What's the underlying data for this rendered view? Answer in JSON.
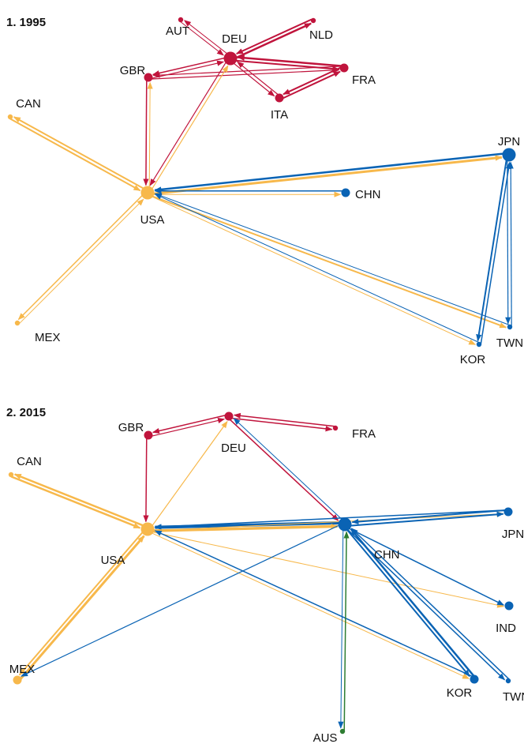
{
  "chart_data": [
    {
      "type": "network",
      "title": "1. 1995",
      "colors": {
        "europe": "#c0143c",
        "america": "#f7b84b",
        "asia": "#0a63b4"
      },
      "nodes": [
        {
          "id": "AUT",
          "group": "europe",
          "size": "small"
        },
        {
          "id": "DEU",
          "group": "europe",
          "size": "large"
        },
        {
          "id": "NLD",
          "group": "europe",
          "size": "small"
        },
        {
          "id": "GBR",
          "group": "europe",
          "size": "medium"
        },
        {
          "id": "FRA",
          "group": "europe",
          "size": "medium"
        },
        {
          "id": "ITA",
          "group": "europe",
          "size": "medium"
        },
        {
          "id": "CAN",
          "group": "america",
          "size": "small"
        },
        {
          "id": "USA",
          "group": "america",
          "size": "large"
        },
        {
          "id": "MEX",
          "group": "america",
          "size": "small"
        },
        {
          "id": "JPN",
          "group": "asia",
          "size": "large"
        },
        {
          "id": "CHN",
          "group": "asia",
          "size": "medium"
        },
        {
          "id": "KOR",
          "group": "asia",
          "size": "small"
        },
        {
          "id": "TWN",
          "group": "asia",
          "size": "small"
        }
      ],
      "edges": [
        {
          "from": "DEU",
          "to": "AUT",
          "w": 1.0
        },
        {
          "from": "AUT",
          "to": "DEU",
          "w": 1.0
        },
        {
          "from": "DEU",
          "to": "NLD",
          "w": 2.5
        },
        {
          "from": "NLD",
          "to": "DEU",
          "w": 2.0
        },
        {
          "from": "DEU",
          "to": "FRA",
          "w": 2.0
        },
        {
          "from": "FRA",
          "to": "DEU",
          "w": 2.5
        },
        {
          "from": "DEU",
          "to": "GBR",
          "w": 1.5
        },
        {
          "from": "GBR",
          "to": "DEU",
          "w": 1.2
        },
        {
          "from": "DEU",
          "to": "ITA",
          "w": 1.2
        },
        {
          "from": "ITA",
          "to": "DEU",
          "w": 1.2
        },
        {
          "from": "ITA",
          "to": "FRA",
          "w": 2.0
        },
        {
          "from": "FRA",
          "to": "ITA",
          "w": 2.0
        },
        {
          "from": "FRA",
          "to": "GBR",
          "w": 1.2
        },
        {
          "from": "GBR",
          "to": "FRA",
          "w": 1.2
        },
        {
          "from": "GBR",
          "to": "USA",
          "w": 1.5
        },
        {
          "from": "DEU",
          "to": "USA",
          "w": 1.2
        },
        {
          "from": "USA",
          "to": "GBR",
          "w": 1.0
        },
        {
          "from": "USA",
          "to": "DEU",
          "w": 1.2
        },
        {
          "from": "USA",
          "to": "CAN",
          "w": 2.0
        },
        {
          "from": "CAN",
          "to": "USA",
          "w": 2.0
        },
        {
          "from": "USA",
          "to": "MEX",
          "w": 1.5
        },
        {
          "from": "MEX",
          "to": "USA",
          "w": 1.0
        },
        {
          "from": "JPN",
          "to": "USA",
          "w": 2.5
        },
        {
          "from": "USA",
          "to": "JPN",
          "w": 3.0
        },
        {
          "from": "CHN",
          "to": "USA",
          "w": 1.5
        },
        {
          "from": "USA",
          "to": "CHN",
          "w": 1.0
        },
        {
          "from": "USA",
          "to": "TWN",
          "w": 2.0
        },
        {
          "from": "TWN",
          "to": "USA",
          "w": 1.0
        },
        {
          "from": "USA",
          "to": "KOR",
          "w": 1.0
        },
        {
          "from": "KOR",
          "to": "USA",
          "w": 1.0
        },
        {
          "from": "JPN",
          "to": "KOR",
          "w": 2.0
        },
        {
          "from": "KOR",
          "to": "JPN",
          "w": 1.5
        },
        {
          "from": "JPN",
          "to": "TWN",
          "w": 1.2
        },
        {
          "from": "TWN",
          "to": "JPN",
          "w": 1.2
        }
      ]
    },
    {
      "type": "network",
      "title": "2. 2015",
      "colors": {
        "europe": "#c0143c",
        "america": "#f7b84b",
        "asia": "#0a63b4",
        "oceania": "#2e7d32"
      },
      "nodes": [
        {
          "id": "GBR",
          "group": "europe",
          "size": "medium"
        },
        {
          "id": "DEU",
          "group": "europe",
          "size": "medium"
        },
        {
          "id": "FRA",
          "group": "europe",
          "size": "small"
        },
        {
          "id": "CAN",
          "group": "america",
          "size": "small"
        },
        {
          "id": "USA",
          "group": "america",
          "size": "large"
        },
        {
          "id": "MEX",
          "group": "america",
          "size": "medium"
        },
        {
          "id": "CHN",
          "group": "asia",
          "size": "large"
        },
        {
          "id": "JPN",
          "group": "asia",
          "size": "medium"
        },
        {
          "id": "IND",
          "group": "asia",
          "size": "medium"
        },
        {
          "id": "TWN",
          "group": "asia",
          "size": "small"
        },
        {
          "id": "KOR",
          "group": "asia",
          "size": "medium"
        },
        {
          "id": "AUS",
          "group": "oceania",
          "size": "small"
        }
      ],
      "edges": [
        {
          "from": "DEU",
          "to": "GBR",
          "w": 1.5
        },
        {
          "from": "GBR",
          "to": "DEU",
          "w": 1.2
        },
        {
          "from": "DEU",
          "to": "FRA",
          "w": 1.5
        },
        {
          "from": "FRA",
          "to": "DEU",
          "w": 1.5
        },
        {
          "from": "GBR",
          "to": "USA",
          "w": 1.5
        },
        {
          "from": "USA",
          "to": "DEU",
          "w": 1.2
        },
        {
          "from": "DEU",
          "to": "CHN",
          "w": 1.5
        },
        {
          "from": "CHN",
          "to": "DEU",
          "w": 1.0
        },
        {
          "from": "USA",
          "to": "CAN",
          "w": 2.5
        },
        {
          "from": "CAN",
          "to": "USA",
          "w": 2.5
        },
        {
          "from": "USA",
          "to": "MEX",
          "w": 2.0
        },
        {
          "from": "MEX",
          "to": "USA",
          "w": 3.0
        },
        {
          "from": "CHN",
          "to": "USA",
          "w": 4.0
        },
        {
          "from": "USA",
          "to": "CHN",
          "w": 3.5
        },
        {
          "from": "JPN",
          "to": "USA",
          "w": 1.5
        },
        {
          "from": "USA",
          "to": "JPN",
          "w": 1.0
        },
        {
          "from": "USA",
          "to": "IND",
          "w": 1.0
        },
        {
          "from": "KOR",
          "to": "USA",
          "w": 1.5
        },
        {
          "from": "USA",
          "to": "KOR",
          "w": 1.0
        },
        {
          "from": "CHN",
          "to": "MEX",
          "w": 1.2
        },
        {
          "from": "CHN",
          "to": "JPN",
          "w": 2.0
        },
        {
          "from": "JPN",
          "to": "CHN",
          "w": 2.0
        },
        {
          "from": "CHN",
          "to": "IND",
          "w": 1.5
        },
        {
          "from": "CHN",
          "to": "TWN",
          "w": 1.5
        },
        {
          "from": "TWN",
          "to": "CHN",
          "w": 1.5
        },
        {
          "from": "CHN",
          "to": "KOR",
          "w": 2.0
        },
        {
          "from": "KOR",
          "to": "CHN",
          "w": 2.5
        },
        {
          "from": "AUS",
          "to": "CHN",
          "w": 1.5
        },
        {
          "from": "CHN",
          "to": "AUS",
          "w": 1.0
        }
      ]
    }
  ]
}
